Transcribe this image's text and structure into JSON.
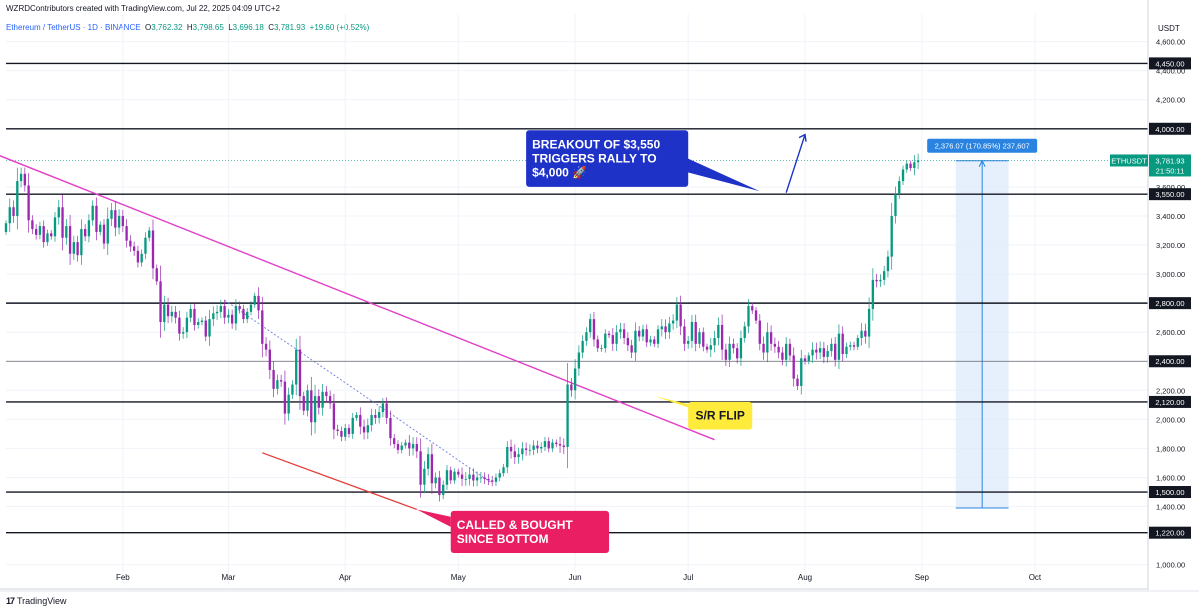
{
  "header": {
    "credit": "WZRDContributors created with TradingView.com, Jul 22, 2025 04:09 UTC+2",
    "symbol": "Ethereum / TetherUS · 1D · BINANCE",
    "o_label": "O",
    "o": "3,762.32",
    "h_label": "H",
    "h": "3,798.65",
    "l_label": "L",
    "l": "3,696.18",
    "c_label": "C",
    "c": "3,781.93",
    "change": "+19.60 (+0.52%)"
  },
  "footer": {
    "logo_text": "TradingView",
    "logo_mark": "17"
  },
  "colors": {
    "up": "#089981",
    "down": "#9c27b0",
    "trendline": "#e040c8",
    "support_line": "#e53935",
    "dotted_line": "#6f7de0",
    "callout_blue": "#1e32c8",
    "callout_yellow": "#ffeb3b",
    "callout_red": "#e91e63",
    "measure_fill": "#dbe8fb",
    "measure_label": "#2a83e0",
    "price_tag": "#089981"
  },
  "chart_data": {
    "type": "candlestick",
    "title": "",
    "xlabel": "",
    "ylabel": "",
    "price_axis_unit": "USDT",
    "ylim": [
      860,
      4790
    ],
    "grid": true,
    "x_ticks": [
      "Feb",
      "Mar",
      "Apr",
      "May",
      "Jun",
      "Jul",
      "Aug",
      "Sep",
      "Oct"
    ],
    "y_ticks": [
      "4,600.00",
      "4,400.00",
      "4,200.00",
      "3,600.00",
      "3,400.00",
      "3,200.00",
      "3,000.00",
      "2,600.00",
      "2,200.00",
      "2,000.00",
      "1,800.00",
      "1,600.00",
      "1,400.00",
      "1,000.00"
    ],
    "x_range": [
      "2025-01-01",
      "2025-10-31"
    ],
    "date_range": [
      "2025-01-01",
      "2025-07-22"
    ],
    "candles_close": [
      3350,
      3460,
      3400,
      3640,
      3690,
      3610,
      3370,
      3310,
      3270,
      3330,
      3220,
      3280,
      3260,
      3390,
      3460,
      3250,
      3330,
      3140,
      3220,
      3130,
      3310,
      3260,
      3370,
      3470,
      3290,
      3340,
      3210,
      3380,
      3440,
      3320,
      3400,
      3330,
      3230,
      3190,
      3160,
      3080,
      3140,
      3250,
      3300,
      3040,
      2950,
      2670,
      2790,
      2710,
      2740,
      2700,
      2590,
      2600,
      2700,
      2760,
      2650,
      2670,
      2680,
      2570,
      2690,
      2730,
      2740,
      2780,
      2700,
      2720,
      2660,
      2780,
      2760,
      2690,
      2740,
      2790,
      2850,
      2750,
      2520,
      2480,
      2340,
      2210,
      2270,
      2260,
      2040,
      2170,
      2240,
      2480,
      2160,
      2060,
      2200,
      1980,
      2160,
      2080,
      2190,
      2160,
      2110,
      1930,
      1920,
      1880,
      1940,
      1900,
      2010,
      2030,
      1950,
      1910,
      1960,
      2030,
      2010,
      2050,
      2110,
      2010,
      1870,
      1830,
      1790,
      1820,
      1840,
      1800,
      1830,
      1780,
      1550,
      1660,
      1760,
      1560,
      1600,
      1480,
      1550,
      1650,
      1580,
      1640,
      1620,
      1590,
      1590,
      1620,
      1580,
      1600,
      1600,
      1590,
      1580,
      1570,
      1600,
      1630,
      1670,
      1810,
      1780,
      1740,
      1760,
      1800,
      1790,
      1790,
      1820,
      1800,
      1810,
      1850,
      1800,
      1840,
      1830,
      1820,
      1810,
      2240,
      2200,
      2350,
      2460,
      2540,
      2600,
      2690,
      2550,
      2490,
      2490,
      2590,
      2580,
      2520,
      2600,
      2620,
      2560,
      2510,
      2460,
      2610,
      2570,
      2620,
      2530,
      2550,
      2520,
      2620,
      2640,
      2600,
      2660,
      2680,
      2790,
      2640,
      2520,
      2540,
      2670,
      2520,
      2600,
      2500,
      2480,
      2510,
      2560,
      2650,
      2480,
      2410,
      2520,
      2490,
      2420,
      2560,
      2640,
      2780,
      2750,
      2680,
      2520,
      2460,
      2600,
      2520,
      2500,
      2460,
      2410,
      2520,
      2440,
      2280,
      2230,
      2420,
      2400,
      2440,
      2480,
      2460,
      2490,
      2430,
      2470,
      2520,
      2410,
      2590,
      2450,
      2500,
      2510,
      2500,
      2560,
      2610,
      2570,
      2760,
      2960,
      2950,
      2960,
      3020,
      3120,
      3400,
      3550,
      3640,
      3720,
      3760,
      3730,
      3770,
      3782
    ]
  },
  "levels": [
    "4,450.00",
    "4,000.00",
    "3,550.00",
    "2,800.00",
    "2,400.00",
    "2,120.00",
    "1,500.00",
    "1,220.00"
  ],
  "levels_minor": [
    "2,400.00"
  ],
  "price_tag": {
    "symbol": "ETHUSDT",
    "price": "3,781.93",
    "countdown": "21:50:11"
  },
  "measure": {
    "label": "2,376.07 (170.85%) 237,607",
    "from": 1390,
    "to": 3780,
    "dates": [
      "2025-09-10",
      "2025-09-24"
    ]
  },
  "trendline": {
    "from": [
      "2024-12-24",
      3880
    ],
    "to": [
      "2025-07-08",
      1860
    ]
  },
  "support_line": {
    "from": [
      "2025-03-10",
      1770
    ],
    "to": [
      "2025-04-20",
      1380
    ]
  },
  "dotted_line": {
    "from": [
      "2025-02-28",
      2820
    ],
    "to": [
      "2025-05-10",
      1560
    ]
  },
  "arrows": {
    "up": {
      "from": [
        "2025-07-27",
        3560
      ],
      "to": [
        "2025-08-01",
        3960
      ]
    }
  },
  "callouts": [
    {
      "id": "breakout",
      "lines": [
        "BREAKOUT OF $3,550",
        "TRIGGERS RALLY TO",
        "$4,000 🚀"
      ],
      "box": [
        "2025-05-19",
        3990,
        "2025-07-01",
        3600
      ],
      "tail": [
        [
          "2025-06-28",
          3830
        ],
        [
          "2025-07-20",
          3570
        ],
        [
          "2025-06-28",
          3720
        ]
      ]
    },
    {
      "id": "sr-flip",
      "lines": [
        "S/R FLIP"
      ],
      "box": [
        "2025-07-01",
        2120,
        "2025-07-18",
        1930
      ],
      "tail": [
        [
          "2025-07-05",
          2080
        ],
        [
          "2025-06-22",
          2160
        ],
        [
          "2025-07-07",
          2030
        ]
      ]
    },
    {
      "id": "called",
      "lines": [
        "CALLED & BOUGHT",
        "SINCE BOTTOM"
      ],
      "box": [
        "2025-04-29",
        1370,
        "2025-06-10",
        1080
      ],
      "tail": [
        [
          "2025-04-29",
          1330
        ],
        [
          "2025-04-20",
          1380
        ],
        [
          "2025-04-29",
          1260
        ]
      ]
    }
  ]
}
